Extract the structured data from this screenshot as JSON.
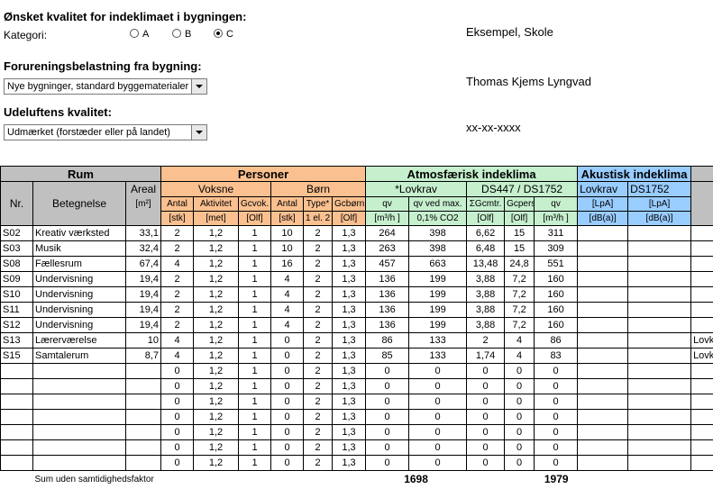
{
  "top": {
    "quality_title": "Ønsket kvalitet for indeklimaet i bygningen:",
    "kategori_label": "Kategori:",
    "radios": [
      {
        "label": "A",
        "selected": false
      },
      {
        "label": "B",
        "selected": false
      },
      {
        "label": "C",
        "selected": true
      }
    ],
    "pollution_title": "Forureningsbelastning fra bygning:",
    "pollution_value": "Nye bygninger, standard byggematerialer",
    "outdoor_title": "Udeluftens kvalitet:",
    "outdoor_value": "Udmærket (forstæder eller på landet)",
    "project": "Eksempel, Skole",
    "author": "Thomas Kjems Lyngvad",
    "date": "xx-xx-xxxx"
  },
  "table": {
    "group_rum": "Rum",
    "group_personer": "Personer",
    "group_atm": "Atmosfærisk indeklima",
    "group_ak": "Akustisk indeklima",
    "sub_nr": "Nr.",
    "sub_betegnelse": "Betegnelse",
    "sub_areal": "Areal",
    "sub_areal_unit": "[m²]",
    "sub_voksne": "Voksne",
    "sub_boern": "Børn",
    "sub_lovkrav": "*Lovkrav",
    "sub_ds": "DS447 / DS1752",
    "sub_ak_lovkrav": "Lovkrav",
    "sub_ak_ds": "DS1752",
    "cols": {
      "antal": "Antal",
      "antal_u": "[stk]",
      "aktivitet": "Aktivitet",
      "aktivitet_u": "[met]",
      "gc_vok": "Gcvok.",
      "gc_vok_u": "[Olf]",
      "antal2": "Antal",
      "antal2_u": "[stk]",
      "type": "Type*",
      "type_u": "1 el. 2",
      "gc_boern": "Gcbørn",
      "gc_boern_u": "[Olf]",
      "qv": "qv",
      "qv_u": "[m³/h ]",
      "qv_max": "qv ved max.",
      "qv_max_u": "0,1% CO2",
      "sgc": "ΣGcmtr.",
      "sgc_u": "[Olf]",
      "gc_pers": "Gcpers.",
      "gc_pers_u": "[Olf]",
      "qv2": "qv",
      "qv2_u": "[m³/h ]",
      "lpa": "[LpA]",
      "lpa_u": "[dB(a)]",
      "lpa2": "[LpA]",
      "lpa2_u": "[dB(a)]"
    },
    "rows": [
      {
        "nr": "S02",
        "name": "Kreativ værksted",
        "areal": "33,1",
        "antal": "2",
        "akt": "1,2",
        "gcv": "1",
        "antal2": "10",
        "type": "2",
        "gcb": "1,3",
        "qv": "264",
        "qvmax": "398",
        "sgc": "6,62",
        "gcp": "15",
        "qv2": "311",
        "extra": ""
      },
      {
        "nr": "S03",
        "name": "Musik",
        "areal": "32,4",
        "antal": "2",
        "akt": "1,2",
        "gcv": "1",
        "antal2": "10",
        "type": "2",
        "gcb": "1,3",
        "qv": "263",
        "qvmax": "398",
        "sgc": "6,48",
        "gcp": "15",
        "qv2": "309",
        "extra": ""
      },
      {
        "nr": "S08",
        "name": "Fællesrum",
        "areal": "67,4",
        "antal": "4",
        "akt": "1,2",
        "gcv": "1",
        "antal2": "16",
        "type": "2",
        "gcb": "1,3",
        "qv": "457",
        "qvmax": "663",
        "sgc": "13,48",
        "gcp": "24,8",
        "qv2": "551",
        "extra": ""
      },
      {
        "nr": "S09",
        "name": "Undervisning",
        "areal": "19,4",
        "antal": "2",
        "akt": "1,2",
        "gcv": "1",
        "antal2": "4",
        "type": "2",
        "gcb": "1,3",
        "qv": "136",
        "qvmax": "199",
        "sgc": "3,88",
        "gcp": "7,2",
        "qv2": "160",
        "extra": ""
      },
      {
        "nr": "S10",
        "name": "Undervisning",
        "areal": "19,4",
        "antal": "2",
        "akt": "1,2",
        "gcv": "1",
        "antal2": "4",
        "type": "2",
        "gcb": "1,3",
        "qv": "136",
        "qvmax": "199",
        "sgc": "3,88",
        "gcp": "7,2",
        "qv2": "160",
        "extra": ""
      },
      {
        "nr": "S11",
        "name": "Undervisning",
        "areal": "19,4",
        "antal": "2",
        "akt": "1,2",
        "gcv": "1",
        "antal2": "4",
        "type": "2",
        "gcb": "1,3",
        "qv": "136",
        "qvmax": "199",
        "sgc": "3,88",
        "gcp": "7,2",
        "qv2": "160",
        "extra": ""
      },
      {
        "nr": "S12",
        "name": "Undervisning",
        "areal": "19,4",
        "antal": "2",
        "akt": "1,2",
        "gcv": "1",
        "antal2": "4",
        "type": "2",
        "gcb": "1,3",
        "qv": "136",
        "qvmax": "199",
        "sgc": "3,88",
        "gcp": "7,2",
        "qv2": "160",
        "extra": ""
      },
      {
        "nr": "S13",
        "name": "Lærerværelse",
        "areal": "10",
        "antal": "4",
        "akt": "1,2",
        "gcv": "1",
        "antal2": "0",
        "type": "2",
        "gcb": "1,3",
        "qv": "86",
        "qvmax": "133",
        "sgc": "2",
        "gcp": "4",
        "qv2": "86",
        "extra": "Lovk"
      },
      {
        "nr": "S15",
        "name": "Samtalerum",
        "areal": "8,7",
        "antal": "4",
        "akt": "1,2",
        "gcv": "1",
        "antal2": "0",
        "type": "2",
        "gcb": "1,3",
        "qv": "85",
        "qvmax": "133",
        "sgc": "1,74",
        "gcp": "4",
        "qv2": "83",
        "extra": "Lovk"
      },
      {
        "nr": "",
        "name": "",
        "areal": "",
        "antal": "0",
        "akt": "1,2",
        "gcv": "1",
        "antal2": "0",
        "type": "2",
        "gcb": "1,3",
        "qv": "0",
        "qvmax": "0",
        "sgc": "0",
        "gcp": "0",
        "qv2": "0",
        "extra": ""
      },
      {
        "nr": "",
        "name": "",
        "areal": "",
        "antal": "0",
        "akt": "1,2",
        "gcv": "1",
        "antal2": "0",
        "type": "2",
        "gcb": "1,3",
        "qv": "0",
        "qvmax": "0",
        "sgc": "0",
        "gcp": "0",
        "qv2": "0",
        "extra": ""
      },
      {
        "nr": "",
        "name": "",
        "areal": "",
        "antal": "0",
        "akt": "1,2",
        "gcv": "1",
        "antal2": "0",
        "type": "2",
        "gcb": "1,3",
        "qv": "0",
        "qvmax": "0",
        "sgc": "0",
        "gcp": "0",
        "qv2": "0",
        "extra": ""
      },
      {
        "nr": "",
        "name": "",
        "areal": "",
        "antal": "0",
        "akt": "1,2",
        "gcv": "1",
        "antal2": "0",
        "type": "2",
        "gcb": "1,3",
        "qv": "0",
        "qvmax": "0",
        "sgc": "0",
        "gcp": "0",
        "qv2": "0",
        "extra": ""
      },
      {
        "nr": "",
        "name": "",
        "areal": "",
        "antal": "0",
        "akt": "1,2",
        "gcv": "1",
        "antal2": "0",
        "type": "2",
        "gcb": "1,3",
        "qv": "0",
        "qvmax": "0",
        "sgc": "0",
        "gcp": "0",
        "qv2": "0",
        "extra": ""
      },
      {
        "nr": "",
        "name": "",
        "areal": "",
        "antal": "0",
        "akt": "1,2",
        "gcv": "1",
        "antal2": "0",
        "type": "2",
        "gcb": "1,3",
        "qv": "0",
        "qvmax": "0",
        "sgc": "0",
        "gcp": "0",
        "qv2": "0",
        "extra": ""
      },
      {
        "nr": "",
        "name": "",
        "areal": "",
        "antal": "0",
        "akt": "1,2",
        "gcv": "1",
        "antal2": "0",
        "type": "2",
        "gcb": "1,3",
        "qv": "0",
        "qvmax": "0",
        "sgc": "0",
        "gcp": "0",
        "qv2": "0",
        "extra": ""
      }
    ],
    "sum_label": "Sum uden samtidighedsfaktor",
    "sum_qv": "1698",
    "sum_qv2": "1979"
  }
}
